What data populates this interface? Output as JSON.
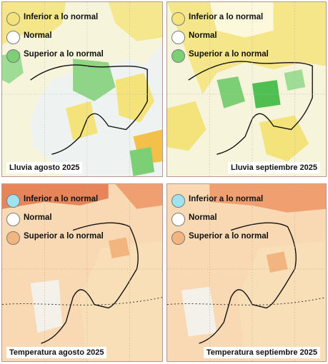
{
  "colors": {
    "below_rain": "#f3e37a",
    "normal": "#ffffff",
    "above_rain": "#7ccf74",
    "below_temp": "#9fe3f0",
    "above_temp": "#f3b57f",
    "coast": "#111111",
    "border": "#b9968b"
  },
  "rain_legend": [
    "Inferior a lo normal",
    "Normal",
    "Superior a lo normal"
  ],
  "temp_legend": [
    "Inferior a lo normal",
    "Normal",
    "Superior a lo normal"
  ],
  "panels": [
    {
      "id": "rain-aug",
      "caption": "Lluvia agosto 2025"
    },
    {
      "id": "rain-sep",
      "caption": "Lluvia septiembre 2025"
    },
    {
      "id": "temp-aug",
      "caption": "Temperatura agosto 2025"
    },
    {
      "id": "temp-sep",
      "caption": "Temperatura septiembre 2025"
    }
  ]
}
